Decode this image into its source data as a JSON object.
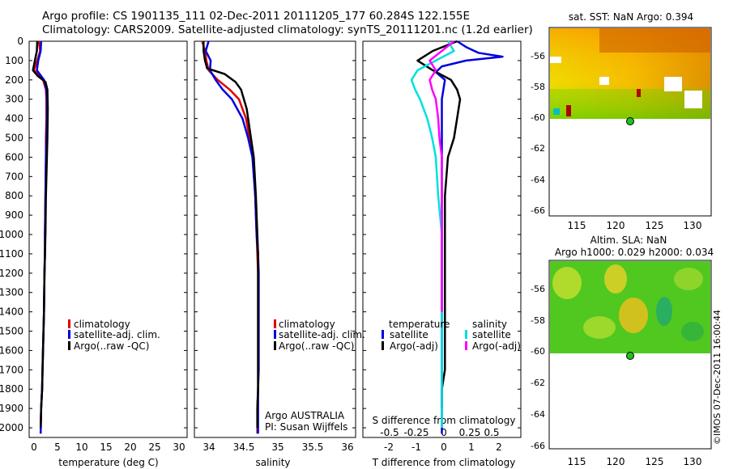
{
  "header": {
    "line1": "Argo profile: CS 1901135_111 02-Dec-2011 20111205_177 60.284S 122.155E",
    "line2": "Climatology: CARS2009. Satellite-adjusted climatology: synTS_20111201.nc (1.2d earlier)"
  },
  "colors": {
    "climatology": "#e00000",
    "satellite": "#0000e0",
    "argo": "#000000",
    "sat_salinity": "#00e0e0",
    "argo_adj_salinity": "#ff00ff"
  },
  "depth_ticks": [
    0,
    100,
    200,
    300,
    400,
    500,
    600,
    700,
    800,
    900,
    1000,
    1100,
    1200,
    1300,
    1400,
    1500,
    1600,
    1700,
    1800,
    1900,
    2000
  ],
  "panels": {
    "temperature": {
      "xlabel": "temperature (deg C)",
      "xticks": [
        "0",
        "5",
        "10",
        "15",
        "20",
        "25",
        "30"
      ],
      "legend": [
        "climatology",
        "satellite-adj. clim.",
        "Argo(..raw -QC)"
      ]
    },
    "salinity": {
      "xlabel": "salinity",
      "xticks": [
        "34",
        "34.5",
        "35",
        "35.5",
        "36"
      ],
      "legend": [
        "climatology",
        "satellite-adj. clim.",
        "Argo(..raw -QC)"
      ],
      "credit1": "Argo AUSTRALIA",
      "credit2": "PI: Susan Wijffels"
    },
    "difference": {
      "xlabel": "T difference from climatology",
      "xticks": [
        "-2",
        "-1",
        "0",
        "1",
        "2"
      ],
      "top_label": "S difference from climatology",
      "top_ticks": [
        "-0.5",
        "-0.25",
        "0",
        "0.25",
        "0.5"
      ],
      "legend_head_t": "temperature",
      "legend_head_s": "salinity",
      "legend_t": [
        "satellite",
        "Argo(-adj)"
      ],
      "legend_s": [
        "satellite",
        "Argo(-adj)"
      ]
    }
  },
  "maps": {
    "sst": {
      "title": "sat. SST: NaN  Argo: 0.394",
      "lat_ticks": [
        "-56",
        "-58",
        "-60",
        "-62",
        "-64",
        "-66"
      ],
      "lon_ticks": [
        "115",
        "120",
        "125",
        "130"
      ]
    },
    "sla": {
      "title1": "Altim. SLA: NaN",
      "title2": "Argo h1000: 0.029 h2000: 0.034",
      "lat_ticks": [
        "-56",
        "-58",
        "-60",
        "-62",
        "-64",
        "-66"
      ],
      "lon_ticks": [
        "115",
        "120",
        "125",
        "130"
      ]
    }
  },
  "footer": "©IMOS 07-Dec-2011 16:00:44",
  "chart_data": [
    {
      "type": "line",
      "title": "",
      "xlabel": "temperature (deg C)",
      "ylabel": "",
      "xlim": [
        -1.5,
        31.5
      ],
      "ylim": [
        2050,
        0
      ],
      "series": [
        {
          "name": "climatology",
          "x": [
            0.5,
            0.8,
            0.2,
            -0.5,
            1.4,
            2.0,
            2.1,
            2.1,
            2.0,
            2.0,
            1.9,
            1.8,
            1.8,
            1.7,
            1.6,
            1.5,
            1.4,
            1.3,
            1.2,
            1.0,
            0.9
          ],
          "y": [
            0,
            50,
            100,
            150,
            200,
            250,
            300,
            400,
            500,
            600,
            800,
            1000,
            1100,
            1200,
            1400,
            1500,
            1600,
            1700,
            1800,
            1900,
            2030
          ]
        },
        {
          "name": "satellite-adj. clim.",
          "x": [
            1.0,
            0.9,
            0.4,
            0.1,
            1.6,
            2.1,
            2.2,
            2.2,
            2.1,
            2.0,
            1.9,
            1.8,
            1.8,
            1.7,
            1.6,
            1.5,
            1.4,
            1.3,
            1.2,
            1.0,
            0.9
          ],
          "y": [
            0,
            50,
            100,
            150,
            200,
            250,
            300,
            400,
            500,
            600,
            800,
            1000,
            1100,
            1200,
            1400,
            1500,
            1600,
            1700,
            1800,
            1900,
            2030
          ]
        },
        {
          "name": "Argo(..raw -QC)",
          "x": [
            0.2,
            0.1,
            -0.3,
            -0.7,
            0.3,
            1.9,
            2.3,
            2.4,
            2.3,
            2.2,
            2.0,
            1.9,
            1.8,
            1.7,
            1.6,
            1.5,
            1.4,
            1.3,
            1.2,
            1.0,
            0.9
          ],
          "y": [
            0,
            50,
            100,
            150,
            180,
            210,
            250,
            350,
            500,
            600,
            800,
            1000,
            1100,
            1200,
            1400,
            1500,
            1600,
            1700,
            1800,
            1900,
            2000
          ]
        }
      ]
    },
    {
      "type": "line",
      "title": "",
      "xlabel": "salinity",
      "ylabel": "",
      "xlim": [
        33.82,
        36.1
      ],
      "ylim": [
        2050,
        0
      ],
      "series": [
        {
          "name": "climatology",
          "x": [
            33.93,
            33.97,
            33.99,
            34.02,
            34.15,
            34.32,
            34.45,
            34.55,
            34.6,
            34.65,
            34.68,
            34.7,
            34.71,
            34.72,
            34.72,
            34.72,
            34.72,
            34.72,
            34.72,
            34.71,
            34.71
          ],
          "y": [
            0,
            50,
            100,
            150,
            200,
            250,
            300,
            400,
            500,
            600,
            800,
            1000,
            1100,
            1200,
            1400,
            1500,
            1600,
            1700,
            1800,
            1900,
            2030
          ]
        },
        {
          "name": "satellite-adj. clim.",
          "x": [
            34.02,
            33.98,
            34.05,
            34.04,
            34.12,
            34.22,
            34.35,
            34.5,
            34.58,
            34.64,
            34.68,
            34.7,
            34.72,
            34.73,
            34.73,
            34.73,
            34.73,
            34.73,
            34.72,
            34.72,
            34.72
          ],
          "y": [
            0,
            50,
            100,
            150,
            200,
            250,
            300,
            400,
            500,
            600,
            800,
            1000,
            1100,
            1200,
            1400,
            1500,
            1600,
            1700,
            1800,
            1900,
            2030
          ]
        },
        {
          "name": "Argo(..raw -QC)",
          "x": [
            33.95,
            33.95,
            33.97,
            34.0,
            34.25,
            34.4,
            34.48,
            34.56,
            34.62,
            34.66,
            34.69,
            34.71,
            34.72,
            34.72,
            34.72,
            34.72,
            34.72,
            34.72,
            34.72,
            34.71,
            34.71
          ],
          "y": [
            0,
            50,
            100,
            140,
            170,
            210,
            250,
            350,
            500,
            600,
            800,
            1000,
            1100,
            1200,
            1400,
            1500,
            1600,
            1700,
            1800,
            1900,
            2000
          ]
        }
      ]
    },
    {
      "type": "line",
      "title": "",
      "xlabel": "T difference from climatology",
      "ylabel": "",
      "xlim": [
        -2.6,
        2.6
      ],
      "ylim": [
        2050,
        0
      ],
      "series": [
        {
          "name": "satellite",
          "x": [
            0.5,
            0.8,
            1.2,
            2.0,
            0.8,
            0.0,
            -0.2,
            0.1,
            0.0,
            0.0,
            0.0,
            0.0,
            0.0,
            0.0,
            0.0,
            0.0,
            0.0,
            0.0,
            0.0,
            0.0
          ],
          "y": [
            0,
            30,
            60,
            80,
            100,
            130,
            160,
            200,
            300,
            500,
            700,
            900,
            1100,
            1300,
            1500,
            1600,
            1700,
            1800,
            1900,
            2030
          ]
        },
        {
          "name": "Argo(-adj)",
          "x": [
            0.5,
            -0.3,
            -0.8,
            -0.3,
            0.3,
            0.5,
            0.6,
            0.5,
            0.4,
            0.2,
            0.1,
            0.1,
            0.1,
            0.1,
            0.1,
            0.1,
            0.1,
            0.0,
            0.0
          ],
          "y": [
            0,
            50,
            100,
            150,
            200,
            250,
            300,
            400,
            500,
            600,
            800,
            1000,
            1200,
            1400,
            1500,
            1600,
            1700,
            1800,
            1900
          ]
        }
      ]
    },
    {
      "type": "line",
      "title": "",
      "xlabel": "S difference from climatology",
      "ylabel": "",
      "xlim": [
        -0.65,
        0.65
      ],
      "ylim": [
        2050,
        0
      ],
      "series": [
        {
          "name": "satellite",
          "x": [
            0.05,
            0.1,
            -0.05,
            -0.2,
            -0.25,
            -0.22,
            -0.18,
            -0.12,
            -0.08,
            -0.05,
            -0.03,
            0.0,
            0.0,
            0.0,
            0.0,
            0.0,
            0.0,
            0.0
          ],
          "y": [
            0,
            50,
            100,
            150,
            200,
            250,
            300,
            400,
            500,
            600,
            800,
            1000,
            1200,
            1400,
            1600,
            1800,
            1900,
            2000
          ]
        },
        {
          "name": "Argo(-adj)",
          "x": [
            0.1,
            0.0,
            -0.1,
            -0.05,
            -0.1,
            -0.08,
            -0.05,
            -0.03,
            -0.02,
            0.0,
            0.0,
            0.0,
            0.0,
            0.0
          ],
          "y": [
            0,
            50,
            100,
            150,
            200,
            250,
            300,
            400,
            500,
            600,
            800,
            1000,
            1200,
            1400
          ]
        }
      ]
    }
  ]
}
